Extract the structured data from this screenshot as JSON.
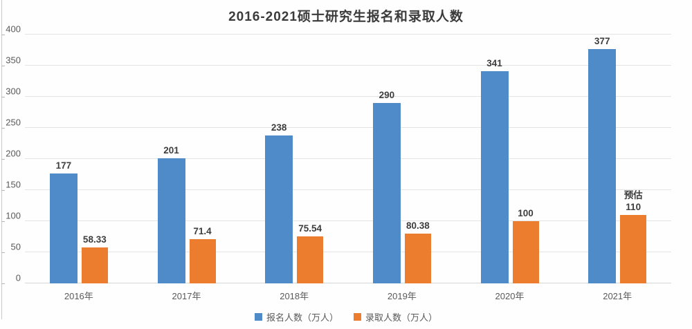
{
  "chart_data": {
    "type": "bar",
    "title": "2016-2021硕士研究生报名和录取人数",
    "categories": [
      "2016年",
      "2017年",
      "2018年",
      "2019年",
      "2020年",
      "2021年"
    ],
    "series": [
      {
        "name": "报名人数（万人）",
        "key": "applicants",
        "color": "#4E8BC8",
        "values": [
          177,
          201,
          238,
          290,
          341,
          377
        ],
        "labels": [
          "177",
          "201",
          "238",
          "290",
          "341",
          "377"
        ]
      },
      {
        "name": "录取人数（万人）",
        "key": "admitted",
        "color": "#ED7D2E",
        "values": [
          58.33,
          71.4,
          75.54,
          80.38,
          100,
          110
        ],
        "labels": [
          "58.33",
          "71.4",
          "75.54",
          "80.38",
          "100",
          "110"
        ]
      }
    ],
    "annotations": [
      {
        "series": 1,
        "index": 5,
        "text": "预估"
      }
    ],
    "ylim": [
      0,
      400
    ],
    "yticks": [
      0,
      50,
      100,
      150,
      200,
      250,
      300,
      350,
      400
    ],
    "grid": true,
    "legend_position": "bottom"
  },
  "colors": {
    "grid": "#e4e4e4",
    "baseline": "#d6d6d6",
    "axis_text": "#595959",
    "label_text": "#3d3d3d"
  }
}
